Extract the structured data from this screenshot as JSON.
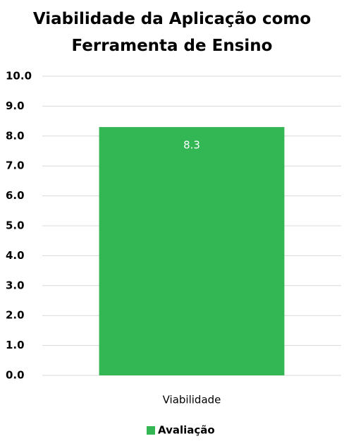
{
  "chart_data": {
    "type": "bar",
    "title": "Viabilidade da Aplicação como Ferramenta de Ensino",
    "categories": [
      "Viabilidade"
    ],
    "series": [
      {
        "name": "Avaliação",
        "color": "#33b654",
        "values": [
          8.3
        ]
      }
    ],
    "ylim": [
      0,
      10
    ],
    "yticks": [
      {
        "value": 0,
        "label": "0.0"
      },
      {
        "value": 1,
        "label": "1.0"
      },
      {
        "value": 2,
        "label": "2.0"
      },
      {
        "value": 3,
        "label": "3.0"
      },
      {
        "value": 4,
        "label": "4.0"
      },
      {
        "value": 5,
        "label": "5.0"
      },
      {
        "value": 6,
        "label": "6.0"
      },
      {
        "value": 7,
        "label": "7.0"
      },
      {
        "value": 8,
        "label": "8.0"
      },
      {
        "value": 9,
        "label": "9.0"
      },
      {
        "value": 10,
        "label": "10.0"
      }
    ],
    "grid": true,
    "legend": "bottom"
  }
}
